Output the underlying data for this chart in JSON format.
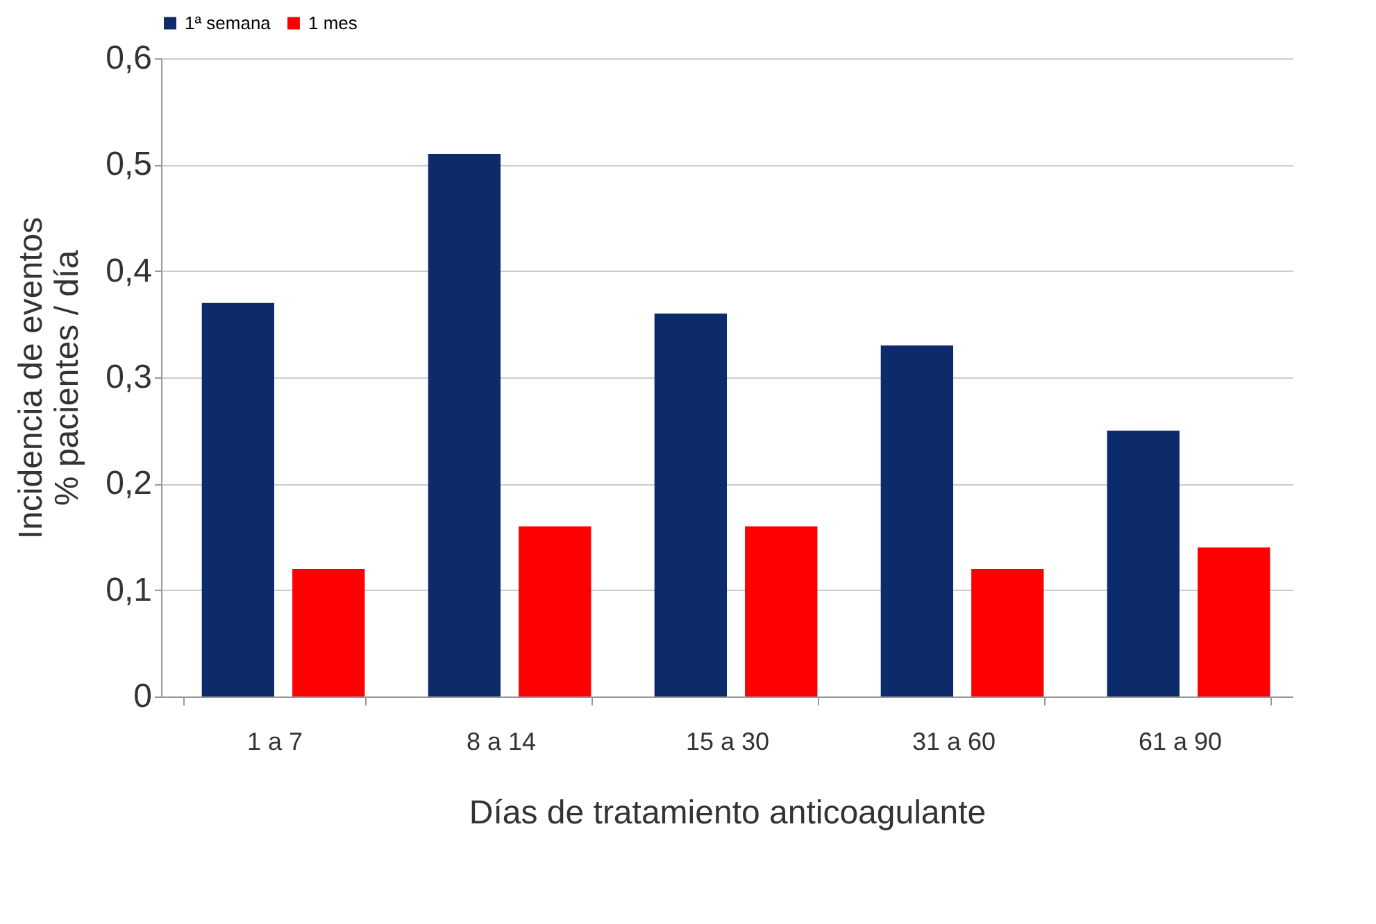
{
  "chart_data": {
    "type": "bar",
    "xlabel": "Días de tratamiento anticoagulante",
    "ylabel": "Incidencia de eventos\n% pacientes / día",
    "categories": [
      "1 a 7",
      "8 a 14",
      "15 a 30",
      "31 a 60",
      "61 a 90"
    ],
    "series": [
      {
        "name": "1ª semana",
        "color": "#0d2a6b",
        "values": [
          0.37,
          0.51,
          0.36,
          0.33,
          0.25
        ]
      },
      {
        "name": "1 mes",
        "color": "#ff0000",
        "values": [
          0.12,
          0.16,
          0.16,
          0.12,
          0.14
        ]
      }
    ],
    "ylim": [
      0,
      0.6
    ],
    "yticks": [
      0,
      {
        "value": 0.1,
        "label": "0,1"
      },
      {
        "value": 0.2,
        "label": "0,2"
      },
      {
        "value": 0.3,
        "label": "0,3"
      },
      {
        "value": 0.4,
        "label": "0,4"
      },
      {
        "value": 0.5,
        "label": "0,5"
      },
      {
        "value": 0.6,
        "label": "0,6"
      }
    ],
    "grid": "y",
    "legend": "top"
  }
}
